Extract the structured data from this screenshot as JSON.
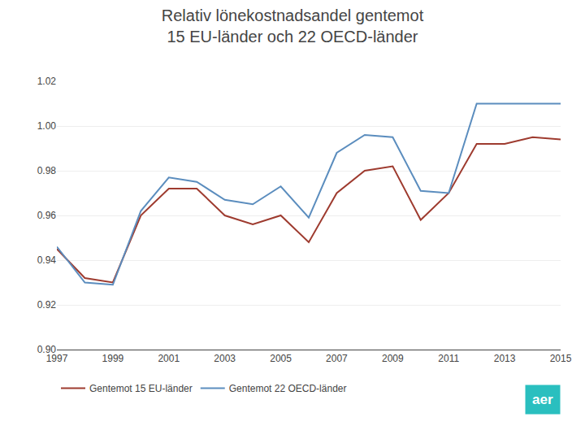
{
  "chart_data": {
    "type": "line",
    "title": "Relativ lönekostnadsandel gentemot",
    "subtitle": "15 EU-länder och 22 OECD-länder",
    "x": [
      1997,
      1998,
      1999,
      2000,
      2001,
      2002,
      2003,
      2004,
      2005,
      2006,
      2007,
      2008,
      2009,
      2010,
      2011,
      2012,
      2013,
      2014,
      2015
    ],
    "series": [
      {
        "name": "Gentemot 15 EU-länder",
        "color": "#9E3B2F",
        "values": [
          0.945,
          0.932,
          0.93,
          0.96,
          0.972,
          0.972,
          0.96,
          0.956,
          0.96,
          0.948,
          0.97,
          0.98,
          0.982,
          0.958,
          0.97,
          0.992,
          0.992,
          0.995,
          0.994
        ]
      },
      {
        "name": "Gentemot 22 OECD-länder",
        "color": "#5B8DBE",
        "values": [
          0.946,
          0.93,
          0.929,
          0.962,
          0.977,
          0.975,
          0.967,
          0.965,
          0.973,
          0.959,
          0.988,
          0.996,
          0.995,
          0.971,
          0.97,
          1.01,
          1.01,
          1.01,
          1.01
        ]
      }
    ],
    "xlim": [
      1997,
      2015
    ],
    "xticks": [
      1997,
      1999,
      2001,
      2003,
      2005,
      2007,
      2009,
      2011,
      2013,
      2015
    ],
    "ylim": [
      0.9,
      1.02
    ],
    "yticks": [
      {
        "value": 0.9,
        "label": "0.90"
      },
      {
        "value": 0.92,
        "label": "0.92"
      },
      {
        "value": 0.94,
        "label": "0.94"
      },
      {
        "value": 0.96,
        "label": "0.96"
      },
      {
        "value": 0.98,
        "label": "0.98"
      },
      {
        "value": 1.0,
        "label": "1.00"
      },
      {
        "value": 1.02,
        "label": "1.02"
      }
    ],
    "grid": true,
    "legend": "bottom",
    "annotations": [
      {
        "text": "aer",
        "color": "#2ABFBF"
      }
    ]
  }
}
